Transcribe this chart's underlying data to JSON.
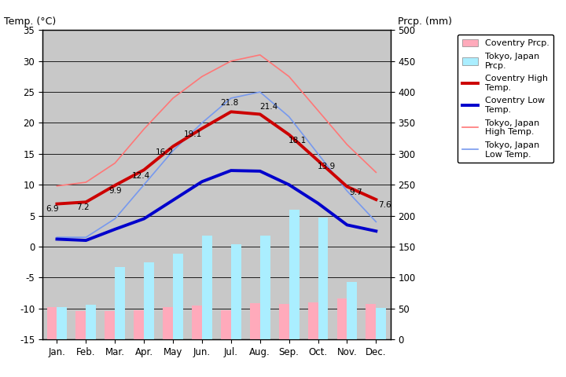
{
  "months": [
    "Jan.",
    "Feb.",
    "Mar.",
    "Apr.",
    "May",
    "Jun.",
    "Jul.",
    "Aug.",
    "Sep.",
    "Oct.",
    "Nov.",
    "Dec."
  ],
  "coventry_high": [
    6.9,
    7.2,
    9.9,
    12.4,
    16.2,
    19.1,
    21.8,
    21.4,
    18.1,
    13.9,
    9.7,
    7.6
  ],
  "coventry_low": [
    1.2,
    1.0,
    2.8,
    4.5,
    7.5,
    10.5,
    12.3,
    12.2,
    10.0,
    7.0,
    3.5,
    2.5
  ],
  "tokyo_high": [
    9.8,
    10.4,
    13.5,
    19.0,
    24.0,
    27.5,
    30.0,
    31.0,
    27.5,
    22.0,
    16.5,
    12.0
  ],
  "tokyo_low": [
    1.5,
    1.5,
    4.5,
    10.0,
    15.5,
    20.0,
    24.0,
    25.0,
    21.0,
    15.0,
    9.0,
    4.0
  ],
  "coventry_prcp_mm": [
    52,
    46,
    46,
    47,
    52,
    55,
    47,
    59,
    57,
    60,
    66,
    57
  ],
  "tokyo_prcp_mm": [
    52,
    56,
    117,
    125,
    138,
    168,
    154,
    168,
    210,
    197,
    93,
    51
  ],
  "temp_ylim": [
    -15,
    35
  ],
  "prcp_ylim": [
    0,
    500
  ],
  "temp_yticks": [
    -15,
    -10,
    -5,
    0,
    5,
    10,
    15,
    20,
    25,
    30,
    35
  ],
  "prcp_yticks": [
    0,
    50,
    100,
    150,
    200,
    250,
    300,
    350,
    400,
    450,
    500
  ],
  "coventry_high_color": "#cc0000",
  "coventry_low_color": "#0000cc",
  "tokyo_high_color": "#ff7777",
  "tokyo_low_color": "#7799ee",
  "coventry_prcp_color": "#ffaabb",
  "tokyo_prcp_color": "#aaeeff",
  "bg_color": "#c8c8c8",
  "plot_bg_color": "#b0b0b0",
  "ylabel_left": "Temp. (°C)",
  "ylabel_right": "Prcp. (mm)",
  "bar_width": 0.35,
  "coventry_high_lw": 2.8,
  "coventry_low_lw": 2.8,
  "tokyo_high_lw": 1.2,
  "tokyo_low_lw": 1.2
}
